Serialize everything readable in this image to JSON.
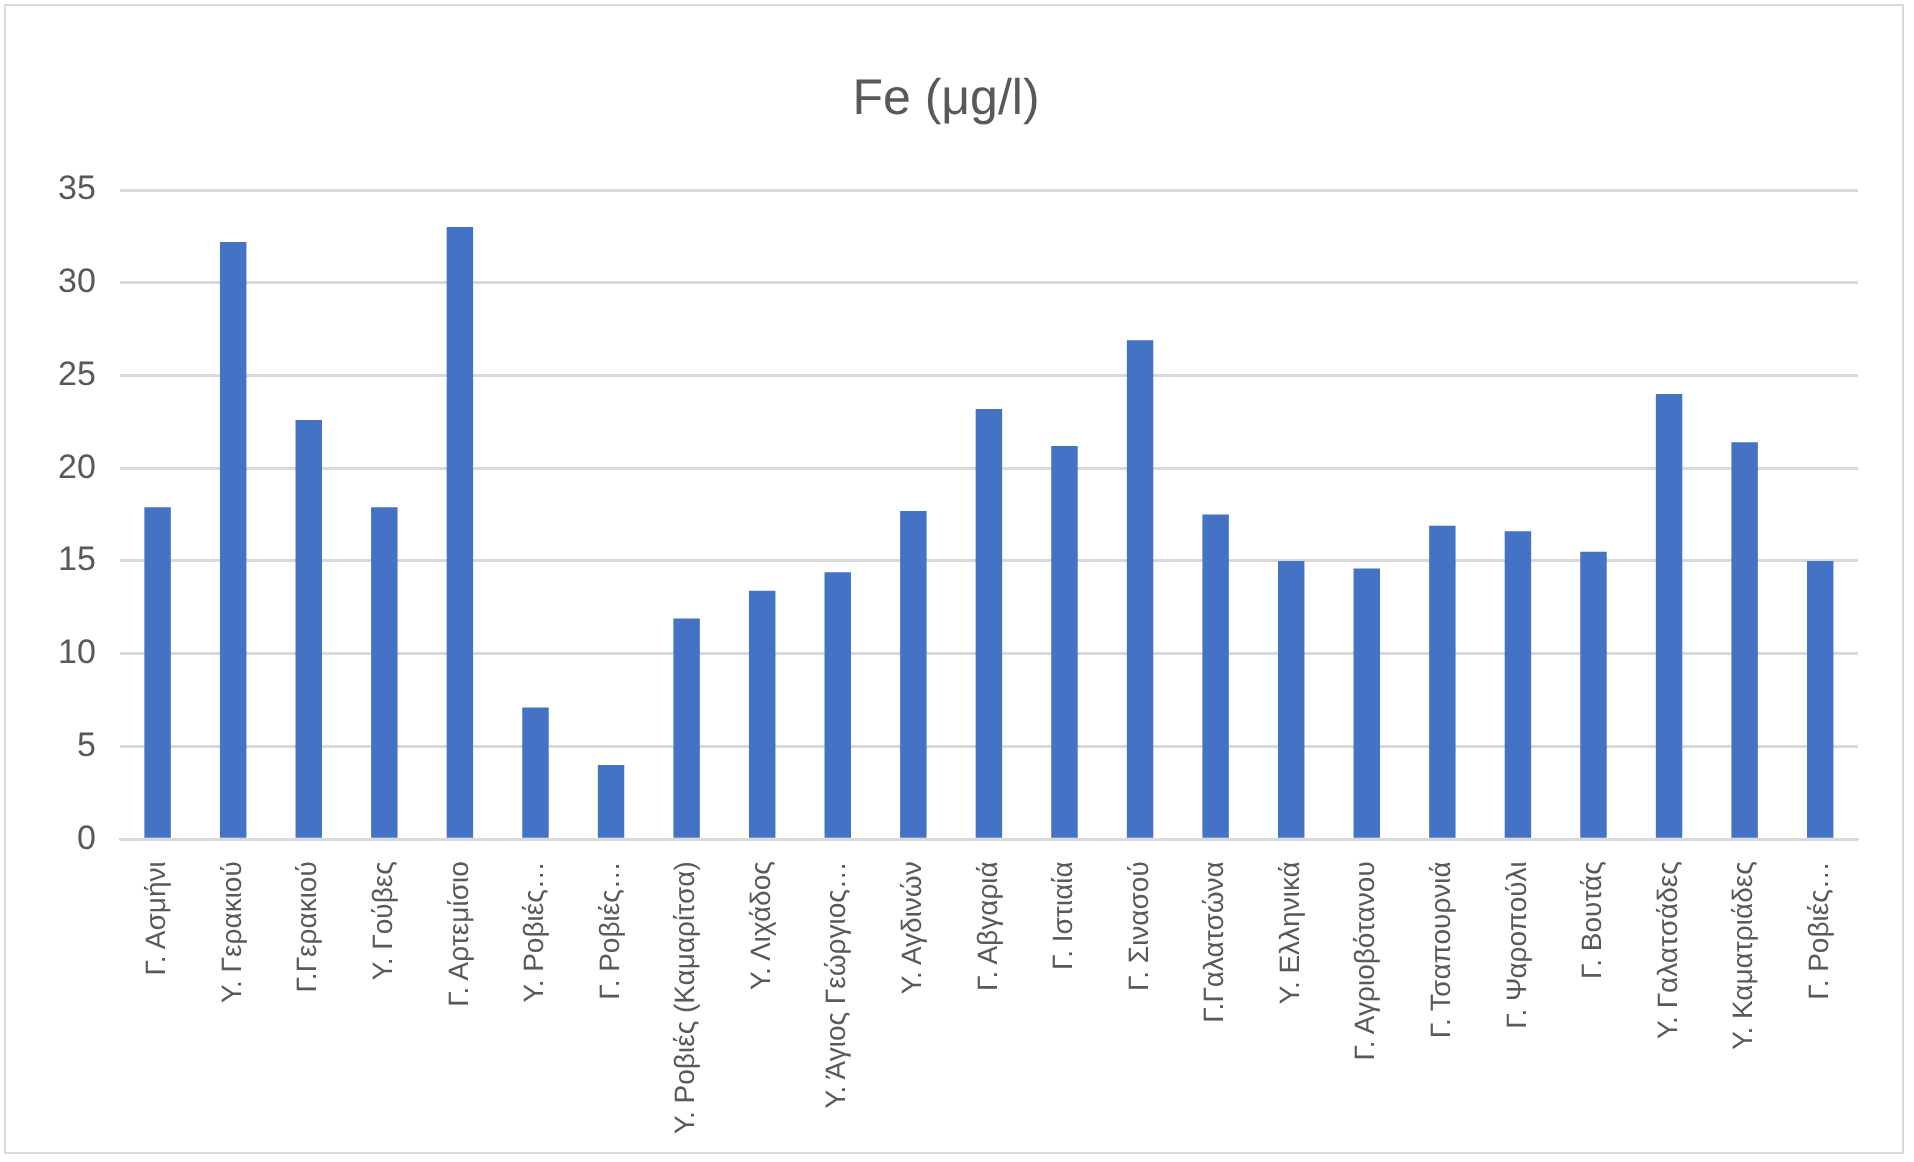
{
  "chart_data": {
    "type": "bar",
    "title": "Fe (μg/l)",
    "categories": [
      "Γ. Ασμήνι",
      "Υ. Γερακιού",
      "Γ.Γερακιού",
      "Υ. Γούβες",
      "Γ. Αρτεμίσιο",
      "Υ. Ροβιές…",
      "Γ. Ροβιές…",
      "Υ. Ροβιές (Καμαρίτσα)",
      "Υ. Λιχάδος",
      "Υ. Άγιος Γεώργιος…",
      "Υ. Αγδινών",
      "Γ. Αβγαριά",
      "Γ. Ιστιαία",
      "Γ. Σινασού",
      "Γ.Γαλατσώνα",
      "Υ. Ελληνικά",
      "Γ. Αγριοβότανου",
      "Γ. Τσαπουρνιά",
      "Γ. Ψαροπούλι",
      "Γ. Βουτάς",
      "Υ. Γαλατσάδες",
      "Υ. Καματριάδες",
      "Γ. Ροβιές…"
    ],
    "values": [
      17.9,
      32.2,
      22.6,
      17.9,
      33.0,
      7.1,
      4.0,
      11.9,
      13.4,
      14.4,
      17.7,
      23.2,
      21.2,
      26.9,
      17.5,
      15.0,
      14.6,
      16.9,
      16.6,
      15.5,
      24.0,
      21.4,
      15.0
    ],
    "color": "#4472c4",
    "ylim": [
      0,
      35
    ],
    "yticks": [
      0,
      5,
      10,
      15,
      20,
      25,
      30,
      35
    ],
    "grid": "y"
  }
}
